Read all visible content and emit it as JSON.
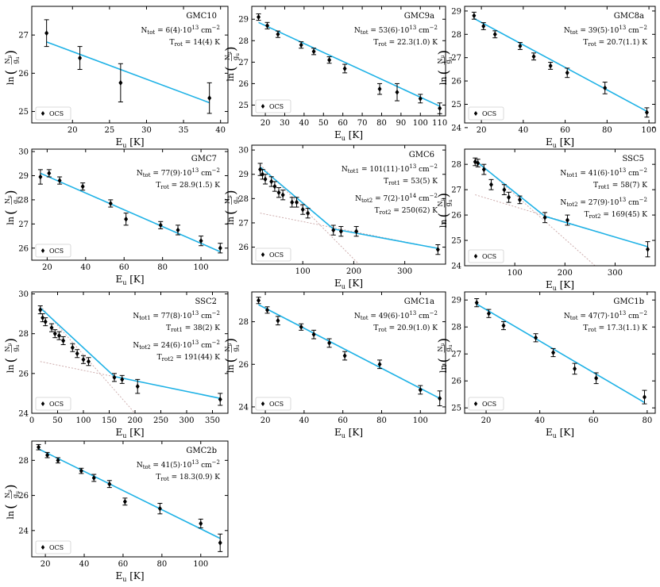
{
  "figure": {
    "legend_label": "OCS",
    "xlabel": "E",
    "xlabel_sub": "u",
    "xlabel_unit": "[K]",
    "ylabel_prefix": "ln",
    "ylabel_num": "N",
    "ylabel_num_sub": "u",
    "ylabel_den": "g",
    "ylabel_den_sub": "u"
  },
  "chart_data": [
    {
      "type": "scatter",
      "title": "GMC10",
      "xlim": [
        14.5,
        41
      ],
      "ylim": [
        24.7,
        27.75
      ],
      "xticks": [
        20,
        25,
        30,
        35,
        40
      ],
      "yticks": [
        25,
        26,
        27
      ],
      "points": [
        [
          16.5,
          27.05,
          0.35
        ],
        [
          21,
          26.4,
          0.3
        ],
        [
          26.5,
          25.75,
          0.5
        ],
        [
          38.5,
          25.35,
          0.4
        ]
      ],
      "fits": [
        {
          "x": [
            16.5,
            38.5
          ],
          "y": [
            26.82,
            25.23
          ]
        }
      ],
      "annotations": [
        {
          "prefix": "N",
          "sub": "tot",
          "text": " = 6(4)·10",
          "sup": "13",
          "unit": " cm",
          "unitsup": "−2"
        },
        {
          "prefix": "T",
          "sub": "rot",
          "text": " = 14(4) K"
        }
      ]
    },
    {
      "type": "scatter",
      "title": "GMC9a",
      "xlim": [
        13,
        113
      ],
      "ylim": [
        24.5,
        29.6
      ],
      "xticks": [
        20,
        30,
        40,
        50,
        60,
        70,
        80,
        90,
        100,
        110
      ],
      "yticks": [
        25,
        26,
        27,
        28,
        29
      ],
      "points": [
        [
          16.5,
          29.1,
          0.15
        ],
        [
          21,
          28.7,
          0.15
        ],
        [
          26.5,
          28.3,
          0.15
        ],
        [
          38.5,
          27.8,
          0.15
        ],
        [
          45,
          27.5,
          0.15
        ],
        [
          53,
          27.1,
          0.15
        ],
        [
          61,
          26.7,
          0.2
        ],
        [
          79,
          25.75,
          0.25
        ],
        [
          88,
          25.6,
          0.4
        ],
        [
          100,
          25.3,
          0.2
        ],
        [
          110,
          24.85,
          0.25
        ]
      ],
      "fits": [
        {
          "x": [
            16.5,
            110
          ],
          "y": [
            28.85,
            24.95
          ]
        }
      ],
      "annotations": [
        {
          "prefix": "N",
          "sub": "tot",
          "text": " = 53(6)·10",
          "sup": "13",
          "unit": " cm",
          "unitsup": "−2"
        },
        {
          "prefix": "T",
          "sub": "rot",
          "text": " = 22.3(1.0) K"
        }
      ]
    },
    {
      "type": "scatter",
      "title": "GMC8a",
      "xlim": [
        12,
        103
      ],
      "ylim": [
        24.2,
        29.2
      ],
      "xticks": [
        20,
        40,
        60,
        80,
        100
      ],
      "yticks": [
        24,
        25,
        26,
        27,
        28,
        29
      ],
      "points": [
        [
          16.5,
          28.8,
          0.15
        ],
        [
          21,
          28.35,
          0.15
        ],
        [
          26.5,
          28.0,
          0.15
        ],
        [
          38.5,
          27.5,
          0.15
        ],
        [
          45,
          27.05,
          0.15
        ],
        [
          53,
          26.65,
          0.15
        ],
        [
          61,
          26.35,
          0.2
        ],
        [
          79,
          25.7,
          0.25
        ],
        [
          99,
          24.65,
          0.2
        ]
      ],
      "fits": [
        {
          "x": [
            16.5,
            99
          ],
          "y": [
            28.68,
            24.7
          ]
        }
      ],
      "annotations": [
        {
          "prefix": "N",
          "sub": "tot",
          "text": " = 39(5)·10",
          "sup": "13",
          "unit": " cm",
          "unitsup": "−2"
        },
        {
          "prefix": "T",
          "sub": "rot",
          "text": " = 20.7(1.1) K"
        }
      ]
    },
    {
      "type": "scatter",
      "title": "GMC7",
      "xlim": [
        12,
        114
      ],
      "ylim": [
        25.5,
        30.1
      ],
      "xticks": [
        20,
        40,
        60,
        80,
        100
      ],
      "yticks": [
        26,
        27,
        28,
        29,
        30
      ],
      "points": [
        [
          16.5,
          28.95,
          0.3
        ],
        [
          21,
          29.1,
          0.15
        ],
        [
          26.5,
          28.8,
          0.15
        ],
        [
          38.5,
          28.55,
          0.15
        ],
        [
          53,
          27.85,
          0.15
        ],
        [
          61,
          27.2,
          0.25
        ],
        [
          79,
          26.95,
          0.15
        ],
        [
          88,
          26.75,
          0.2
        ],
        [
          100,
          26.3,
          0.2
        ],
        [
          110,
          26.0,
          0.2
        ]
      ],
      "fits": [
        {
          "x": [
            16.5,
            110
          ],
          "y": [
            29.1,
            25.85
          ]
        }
      ],
      "annotations": [
        {
          "prefix": "N",
          "sub": "tot",
          "text": " = 77(9)·10",
          "sup": "13",
          "unit": " cm",
          "unitsup": "−2"
        },
        {
          "prefix": "T",
          "sub": "rot",
          "text": " = 28.9(1.5) K"
        }
      ]
    },
    {
      "type": "scatter",
      "title": "GMC6",
      "xlim": [
        0,
        380
      ],
      "ylim": [
        25.3,
        30.2
      ],
      "xticks": [
        100,
        200,
        300
      ],
      "yticks": [
        26,
        27,
        28,
        29,
        30
      ],
      "points": [
        [
          16.5,
          29.2,
          0.25
        ],
        [
          21,
          29.0,
          0.2
        ],
        [
          26.5,
          28.8,
          0.2
        ],
        [
          38.5,
          28.7,
          0.2
        ],
        [
          45,
          28.5,
          0.2
        ],
        [
          53,
          28.25,
          0.2
        ],
        [
          61,
          28.15,
          0.2
        ],
        [
          79,
          27.85,
          0.2
        ],
        [
          88,
          27.85,
          0.2
        ],
        [
          100,
          27.55,
          0.2
        ],
        [
          110,
          27.4,
          0.2
        ],
        [
          160,
          26.7,
          0.2
        ],
        [
          175,
          26.65,
          0.2
        ],
        [
          205,
          26.65,
          0.2
        ],
        [
          365,
          25.9,
          0.2
        ]
      ],
      "fits": [
        {
          "x": [
            16.5,
            160
          ],
          "y": [
            29.3,
            26.75
          ]
        },
        {
          "x": [
            160,
            365
          ],
          "y": [
            26.75,
            25.95
          ]
        }
      ],
      "components": [
        {
          "x": [
            16.5,
            210
          ],
          "y": [
            29.4,
            25.3
          ]
        },
        {
          "x": [
            16.5,
            365
          ],
          "y": [
            27.4,
            25.95
          ]
        }
      ],
      "annotations": [
        {
          "prefix": "N",
          "sub": "tot1",
          "text": " = 101(11)·10",
          "sup": "13",
          "unit": " cm",
          "unitsup": "−2"
        },
        {
          "prefix": "T",
          "sub": "rot1",
          "text": " = 53(5) K"
        },
        {
          "prefix": "N",
          "sub": "tot2",
          "text": " = 7(2)·10",
          "sup": "14",
          "unit": " cm",
          "unitsup": "−2"
        },
        {
          "prefix": "T",
          "sub": "rot2",
          "text": " = 250(62) K"
        }
      ]
    },
    {
      "type": "scatter",
      "title": "SSC5",
      "xlim": [
        0,
        380
      ],
      "ylim": [
        24.0,
        28.6
      ],
      "xticks": [
        100,
        200,
        300
      ],
      "yticks": [
        24,
        25,
        26,
        27,
        28
      ],
      "points": [
        [
          21,
          28.1,
          0.15
        ],
        [
          26.5,
          28.05,
          0.15
        ],
        [
          38.5,
          27.8,
          0.2
        ],
        [
          53,
          27.2,
          0.2
        ],
        [
          79,
          27.0,
          0.2
        ],
        [
          88,
          26.7,
          0.2
        ],
        [
          110,
          26.6,
          0.15
        ],
        [
          160,
          25.9,
          0.2
        ],
        [
          205,
          25.8,
          0.2
        ],
        [
          365,
          24.65,
          0.3
        ]
      ],
      "fits": [
        {
          "x": [
            21,
            160
          ],
          "y": [
            28.15,
            25.95
          ]
        },
        {
          "x": [
            160,
            365
          ],
          "y": [
            25.95,
            24.75
          ]
        }
      ],
      "components": [
        {
          "x": [
            21,
            260
          ],
          "y": [
            28.2,
            24.0
          ]
        },
        {
          "x": [
            21,
            365
          ],
          "y": [
            26.8,
            24.75
          ]
        }
      ],
      "annotations": [
        {
          "prefix": "N",
          "sub": "tot1",
          "text": " = 41(6)·10",
          "sup": "13",
          "unit": " cm",
          "unitsup": "−2"
        },
        {
          "prefix": "T",
          "sub": "rot1",
          "text": " = 58(7) K"
        },
        {
          "prefix": "N",
          "sub": "tot2",
          "text": " = 27(9)·10",
          "sup": "13",
          "unit": " cm",
          "unitsup": "−2"
        },
        {
          "prefix": "T",
          "sub": "rot2",
          "text": " = 169(45) K"
        }
      ]
    },
    {
      "type": "scatter",
      "title": "SSC2",
      "xlim": [
        0,
        380
      ],
      "ylim": [
        24.0,
        30.1
      ],
      "xticks": [
        0,
        50,
        100,
        150,
        200,
        250,
        300,
        350
      ],
      "yticks": [
        24,
        26,
        28,
        30
      ],
      "points": [
        [
          16.5,
          29.2,
          0.2
        ],
        [
          21,
          28.8,
          0.2
        ],
        [
          26.5,
          28.6,
          0.2
        ],
        [
          38.5,
          28.3,
          0.2
        ],
        [
          45,
          28.0,
          0.2
        ],
        [
          53,
          27.9,
          0.2
        ],
        [
          61,
          27.65,
          0.2
        ],
        [
          79,
          27.3,
          0.2
        ],
        [
          88,
          27.0,
          0.2
        ],
        [
          100,
          26.7,
          0.2
        ],
        [
          110,
          26.6,
          0.2
        ],
        [
          160,
          25.8,
          0.2
        ],
        [
          175,
          25.7,
          0.2
        ],
        [
          205,
          25.35,
          0.35
        ],
        [
          365,
          24.7,
          0.3
        ]
      ],
      "fits": [
        {
          "x": [
            16.5,
            160
          ],
          "y": [
            29.3,
            25.85
          ]
        },
        {
          "x": [
            160,
            365
          ],
          "y": [
            25.85,
            24.75
          ]
        }
      ],
      "components": [
        {
          "x": [
            16.5,
            200
          ],
          "y": [
            29.4,
            24.0
          ]
        },
        {
          "x": [
            16.5,
            365
          ],
          "y": [
            26.6,
            24.75
          ]
        }
      ],
      "annotations": [
        {
          "prefix": "N",
          "sub": "tot1",
          "text": " = 77(8)·10",
          "sup": "13",
          "unit": " cm",
          "unitsup": "−2"
        },
        {
          "prefix": "T",
          "sub": "rot1",
          "text": " = 38(2) K"
        },
        {
          "prefix": "N",
          "sub": "tot2",
          "text": " = 24(6)·10",
          "sup": "13",
          "unit": " cm",
          "unitsup": "−2"
        },
        {
          "prefix": "T",
          "sub": "rot2",
          "text": " = 191(44) K"
        }
      ]
    },
    {
      "type": "scatter",
      "title": "GMC1a",
      "xlim": [
        13,
        113
      ],
      "ylim": [
        23.7,
        29.4
      ],
      "xticks": [
        20,
        40,
        60,
        80,
        100
      ],
      "yticks": [
        24,
        26,
        28
      ],
      "points": [
        [
          16.5,
          29.0,
          0.15
        ],
        [
          21,
          28.55,
          0.15
        ],
        [
          26.5,
          28.05,
          0.2
        ],
        [
          38.5,
          27.75,
          0.15
        ],
        [
          45,
          27.4,
          0.2
        ],
        [
          53,
          27.0,
          0.2
        ],
        [
          61,
          26.4,
          0.2
        ],
        [
          79,
          26.0,
          0.2
        ],
        [
          100,
          24.8,
          0.2
        ],
        [
          110,
          24.4,
          0.35
        ]
      ],
      "fits": [
        {
          "x": [
            16.5,
            110
          ],
          "y": [
            28.8,
            24.4
          ]
        }
      ],
      "annotations": [
        {
          "prefix": "N",
          "sub": "tot",
          "text": " = 49(6)·10",
          "sup": "13",
          "unit": " cm",
          "unitsup": "−2"
        },
        {
          "prefix": "T",
          "sub": "rot",
          "text": " = 20.9(1.0) K"
        }
      ]
    },
    {
      "type": "scatter",
      "title": "GMC1b",
      "xlim": [
        12,
        83
      ],
      "ylim": [
        24.8,
        29.3
      ],
      "xticks": [
        20,
        40,
        60,
        80
      ],
      "yticks": [
        25,
        26,
        27,
        28,
        29
      ],
      "points": [
        [
          16.5,
          28.9,
          0.15
        ],
        [
          21,
          28.5,
          0.15
        ],
        [
          26.5,
          28.05,
          0.15
        ],
        [
          38.5,
          27.6,
          0.15
        ],
        [
          45,
          27.05,
          0.15
        ],
        [
          53,
          26.45,
          0.2
        ],
        [
          61,
          26.1,
          0.2
        ],
        [
          79,
          25.4,
          0.25
        ]
      ],
      "fits": [
        {
          "x": [
            16.5,
            79
          ],
          "y": [
            28.85,
            25.2
          ]
        }
      ],
      "annotations": [
        {
          "prefix": "N",
          "sub": "tot",
          "text": " = 47(7)·10",
          "sup": "13",
          "unit": " cm",
          "unitsup": "−2"
        },
        {
          "prefix": "T",
          "sub": "rot",
          "text": " = 17.3(1.1) K"
        }
      ]
    },
    {
      "type": "scatter",
      "title": "GMC2b",
      "xlim": [
        13,
        114
      ],
      "ylim": [
        22.5,
        29.1
      ],
      "xticks": [
        20,
        40,
        60,
        80,
        100
      ],
      "yticks": [
        24,
        26,
        28
      ],
      "points": [
        [
          16.5,
          28.75,
          0.15
        ],
        [
          21,
          28.3,
          0.15
        ],
        [
          26.5,
          28.0,
          0.15
        ],
        [
          38.5,
          27.4,
          0.15
        ],
        [
          45,
          27.0,
          0.2
        ],
        [
          53,
          26.65,
          0.2
        ],
        [
          61,
          25.65,
          0.2
        ],
        [
          79,
          25.25,
          0.3
        ],
        [
          100,
          24.4,
          0.25
        ],
        [
          110,
          23.3,
          0.5
        ]
      ],
      "fits": [
        {
          "x": [
            16.5,
            110
          ],
          "y": [
            28.65,
            23.55
          ]
        }
      ],
      "annotations": [
        {
          "prefix": "N",
          "sub": "tot",
          "text": " = 41(5)·10",
          "sup": "13",
          "unit": " cm",
          "unitsup": "−2"
        },
        {
          "prefix": "T",
          "sub": "rot",
          "text": " = 18.3(0.9) K"
        }
      ]
    }
  ]
}
